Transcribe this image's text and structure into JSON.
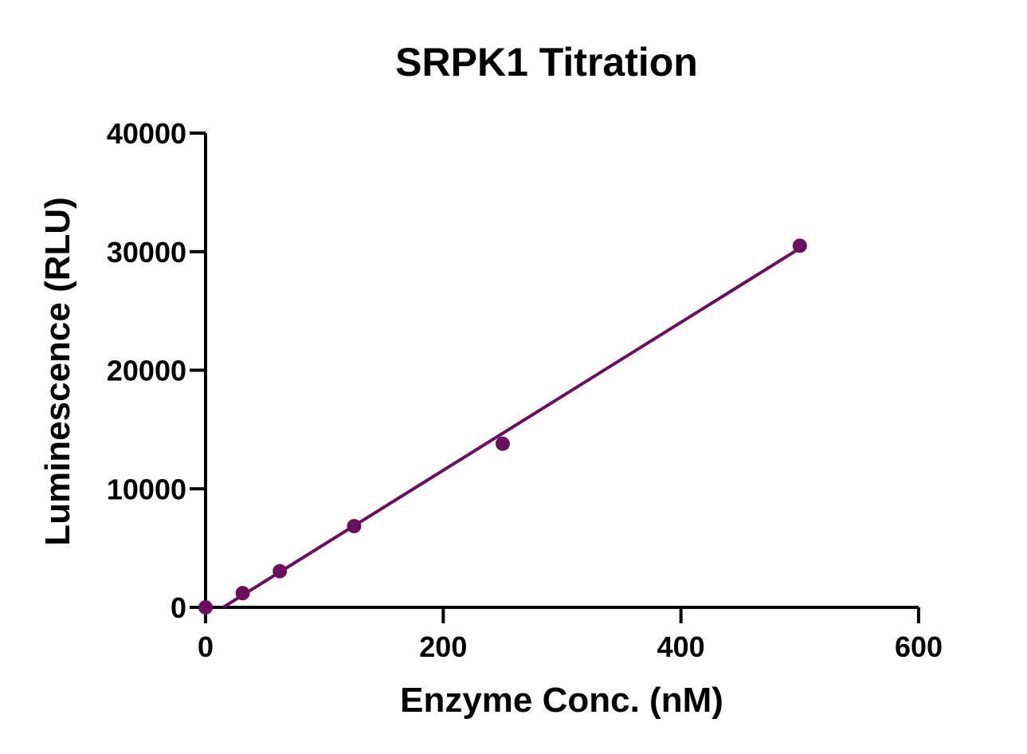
{
  "chart_data": {
    "type": "scatter",
    "title": "SRPK1 Titration",
    "xlabel": "Enzyme Conc. (nM)",
    "ylabel": "Luminescence (RLU)",
    "xlim": [
      0,
      600
    ],
    "ylim": [
      0,
      40000
    ],
    "xticks": [
      0,
      200,
      400,
      600
    ],
    "yticks": [
      0,
      10000,
      20000,
      30000,
      40000
    ],
    "xtick_labels": [
      "0",
      "200",
      "400",
      "600"
    ],
    "ytick_labels": [
      "0",
      "10000",
      "20000",
      "30000",
      "40000"
    ],
    "grid": false,
    "legend": "none",
    "series": [
      {
        "points": [
          {
            "x": 0,
            "y": 0
          },
          {
            "x": 31.25,
            "y": 1200
          },
          {
            "x": 62.5,
            "y": 3050
          },
          {
            "x": 125,
            "y": 6850
          },
          {
            "x": 250,
            "y": 13800
          },
          {
            "x": 500,
            "y": 30500
          }
        ],
        "fit_line": {
          "x_start": 15,
          "x_end": 500,
          "slope": 62.4,
          "intercept": -920
        }
      }
    ],
    "colors": {
      "series": "#6a0f5e",
      "axis": "#000000"
    }
  }
}
